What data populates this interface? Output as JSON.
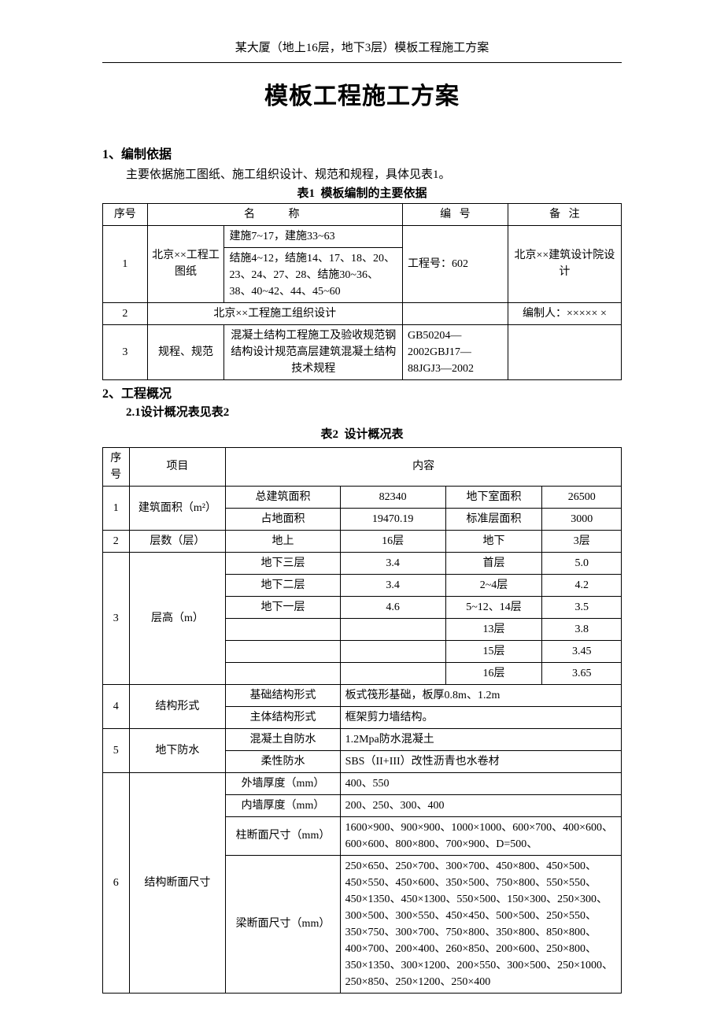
{
  "header": "某大厦（地上16层，地下3层）模板工程施工方案",
  "main_title": "模板工程施工方案",
  "section1": {
    "heading": "1、编制依据",
    "intro": "主要依据施工图纸、施工组织设计、规范和规程，具体见表1。",
    "table_title": "表1  模板编制的主要依据",
    "headers": {
      "seq": "序号",
      "name": "名   称",
      "code": "编   号",
      "remark": "备   注"
    },
    "rows": [
      {
        "seq": "1",
        "name1": "北京××工程工图纸",
        "name2a": "建施7~17，建施33~63",
        "name2b": "结施4~12，结施14、17、18、20、23、24、27、28、结施30~36、38、40~42、44、45~60",
        "code": "工程号：602",
        "remark": "北京××建筑设计院设计"
      },
      {
        "seq": "2",
        "name": "北京××工程施工组织设计",
        "code": "",
        "remark": "编制人：×××××\n×"
      },
      {
        "seq": "3",
        "name1": "规程、规范",
        "name2": "混凝土结构工程施工及验收规范钢结构设计规范高层建筑混凝土结构技术规程",
        "code": "GB50204—2002GBJ17—88JGJ3—2002",
        "remark": ""
      }
    ]
  },
  "section2": {
    "heading": "2、工程概况",
    "sub_heading": "2.1设计概况表见表2",
    "table_title": "表2  设计概况表",
    "headers": {
      "seq": "序号",
      "item": "项目",
      "content": "内容"
    },
    "r1": {
      "seq": "1",
      "item": "建筑面积（m²）",
      "a1": "总建筑面积",
      "a2": "82340",
      "a3": "地下室面积",
      "a4": "26500",
      "b1": "占地面积",
      "b2": "19470.19",
      "b3": "标准层面积",
      "b4": "3000"
    },
    "r2": {
      "seq": "2",
      "item": "层数（层）",
      "a1": "地上",
      "a2": "16层",
      "a3": "地下",
      "a4": "3层"
    },
    "r3": {
      "seq": "3",
      "item": "层高（m）",
      "rows": [
        {
          "c1": "地下三层",
          "c2": "3.4",
          "c3": "首层",
          "c4": "5.0"
        },
        {
          "c1": "地下二层",
          "c2": "3.4",
          "c3": "2~4层",
          "c4": "4.2"
        },
        {
          "c1": "地下一层",
          "c2": "4.6",
          "c3": "5~12、14层",
          "c4": "3.5"
        },
        {
          "c1": "",
          "c2": "",
          "c3": "13层",
          "c4": "3.8"
        },
        {
          "c1": "",
          "c2": "",
          "c3": "15层",
          "c4": "3.45"
        },
        {
          "c1": "",
          "c2": "",
          "c3": "16层",
          "c4": "3.65"
        }
      ]
    },
    "r4": {
      "seq": "4",
      "item": "结构形式",
      "a1": "基础结构形式",
      "a2": "板式筏形基础，板厚0.8m、1.2m",
      "b1": "主体结构形式",
      "b2": "框架剪力墙结构。"
    },
    "r5": {
      "seq": "5",
      "item": "地下防水",
      "a1": "混凝土自防水",
      "a2": "1.2Mpa防水混凝土",
      "b1": "柔性防水",
      "b2": "SBS（II+III）改性沥青也水卷材"
    },
    "r6": {
      "seq": "6",
      "item": "结构断面尺寸",
      "rows": [
        {
          "label": "外墙厚度（mm）",
          "val": "400、550"
        },
        {
          "label": "内墙厚度（mm）",
          "val": "200、250、300、400"
        },
        {
          "label": "柱断面尺寸（mm）",
          "val": "1600×900、900×900、1000×1000、600×700、400×600、600×600、800×800、700×900、D=500、"
        },
        {
          "label": "梁断面尺寸（mm）",
          "val": "250×650、250×700、300×700、450×800、450×500、450×550、450×600、350×500、750×800、550×550、450×1350、450×1300、550×500、150×300、250×300、300×500、300×550、450×450、500×500、250×550、350×750、300×700、750×800、350×800、850×800、400×700、200×400、260×850、200×600、250×800、350×1350、300×1200、200×550、300×500、250×1000、250×850、250×1200、250×400"
        }
      ]
    }
  }
}
